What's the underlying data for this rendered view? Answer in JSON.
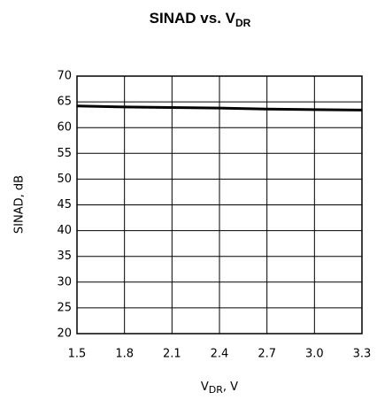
{
  "chart_data": {
    "type": "line",
    "title": {
      "text": "SINAD vs. V",
      "subscript": "DR"
    },
    "y_label": "SINAD, dB",
    "x_label": {
      "text": "V",
      "subscript": "DR",
      "suffix": ", V"
    },
    "x": [
      1.5,
      1.8,
      2.1,
      2.4,
      2.7,
      3.0,
      3.3
    ],
    "series": [
      {
        "color": "#000000",
        "values": [
          64.2,
          64.0,
          63.9,
          63.8,
          63.6,
          63.5,
          63.4
        ]
      }
    ],
    "xlim": [
      1.5,
      3.3
    ],
    "xticks": [
      1.5,
      1.8,
      2.1,
      2.4,
      2.7,
      {
        "value": 3.0,
        "label": "3.0"
      },
      3.3
    ],
    "ylim": [
      20,
      70
    ],
    "yticks": [
      20,
      25,
      30,
      35,
      40,
      45,
      50,
      55,
      60,
      65,
      70
    ],
    "grid": true
  }
}
